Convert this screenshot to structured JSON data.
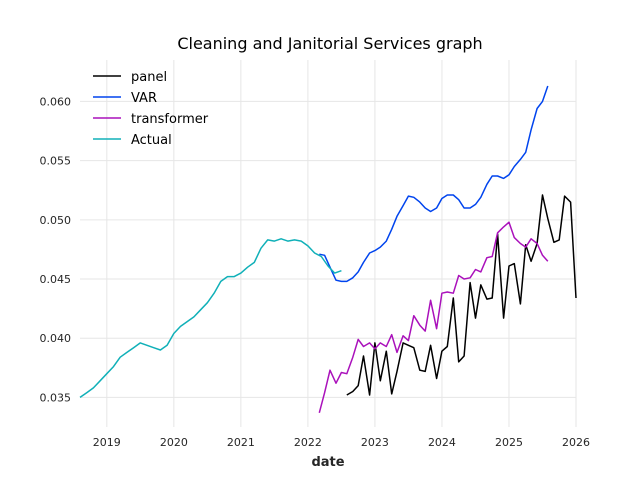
{
  "chart_data": {
    "type": "line",
    "title": "Cleaning and Janitorial Services graph",
    "xlabel": "date",
    "ylabel": "",
    "xlim": [
      2018.6,
      2026.0
    ],
    "ylim": [
      0.0325,
      0.0635
    ],
    "x_ticks": [
      2019,
      2020,
      2021,
      2022,
      2023,
      2024,
      2025,
      2026
    ],
    "x_tick_labels": [
      "2019",
      "2020",
      "2021",
      "2022",
      "2023",
      "2024",
      "2025",
      "2026"
    ],
    "y_ticks": [
      0.035,
      0.04,
      0.045,
      0.05,
      0.055,
      0.06
    ],
    "y_tick_labels": [
      "0.035",
      "0.040",
      "0.045",
      "0.050",
      "0.055",
      "0.060"
    ],
    "grid": true,
    "legend_position": "top-left",
    "series": [
      {
        "name": "panel",
        "color": "#000000",
        "x": [
          2022.58,
          2022.67,
          2022.75,
          2022.83,
          2022.92,
          2023.0,
          2023.08,
          2023.17,
          2023.25,
          2023.33,
          2023.42,
          2023.5,
          2023.58,
          2023.67,
          2023.75,
          2023.83,
          2023.92,
          2024.0,
          2024.08,
          2024.17,
          2024.25,
          2024.33,
          2024.42,
          2024.5,
          2024.58,
          2024.67,
          2024.75,
          2024.83,
          2024.92,
          2025.0,
          2025.08,
          2025.17,
          2025.25,
          2025.33,
          2025.42,
          2025.5,
          2025.58,
          2025.67,
          2025.75,
          2025.83,
          2025.92,
          2026.0
        ],
        "values": [
          0.0352,
          0.0355,
          0.036,
          0.0385,
          0.0352,
          0.0396,
          0.0364,
          0.0389,
          0.0353,
          0.0372,
          0.0396,
          0.0394,
          0.0392,
          0.0373,
          0.0372,
          0.0394,
          0.0366,
          0.0389,
          0.0393,
          0.0434,
          0.038,
          0.0385,
          0.0447,
          0.0417,
          0.0445,
          0.0433,
          0.0434,
          0.0488,
          0.0417,
          0.0461,
          0.0463,
          0.0429,
          0.0479,
          0.0465,
          0.048,
          0.0521,
          0.0501,
          0.0481,
          0.0483,
          0.052,
          0.0515,
          0.0434
        ]
      },
      {
        "name": "VAR",
        "color": "#0044ee",
        "x": [
          2022.17,
          2022.25,
          2022.33,
          2022.42,
          2022.5,
          2022.58,
          2022.67,
          2022.75,
          2022.83,
          2022.92,
          2023.0,
          2023.08,
          2023.17,
          2023.25,
          2023.33,
          2023.42,
          2023.5,
          2023.58,
          2023.67,
          2023.75,
          2023.83,
          2023.92,
          2024.0,
          2024.08,
          2024.17,
          2024.25,
          2024.33,
          2024.42,
          2024.5,
          2024.58,
          2024.67,
          2024.75,
          2024.83,
          2024.92,
          2025.0,
          2025.08,
          2025.17,
          2025.25,
          2025.33,
          2025.42,
          2025.5,
          2025.58
        ],
        "values": [
          0.0471,
          0.047,
          0.046,
          0.0449,
          0.0448,
          0.0448,
          0.0451,
          0.0456,
          0.0464,
          0.0472,
          0.0474,
          0.0477,
          0.0482,
          0.0492,
          0.0503,
          0.0512,
          0.052,
          0.0519,
          0.0515,
          0.051,
          0.0507,
          0.051,
          0.0518,
          0.0521,
          0.0521,
          0.0517,
          0.051,
          0.051,
          0.0513,
          0.0519,
          0.053,
          0.0537,
          0.0537,
          0.0535,
          0.0538,
          0.0545,
          0.0551,
          0.0557,
          0.0576,
          0.0594,
          0.06,
          0.0613
        ]
      },
      {
        "name": "transformer",
        "color": "#aa11bb",
        "x": [
          2022.17,
          2022.25,
          2022.33,
          2022.42,
          2022.5,
          2022.58,
          2022.67,
          2022.75,
          2022.83,
          2022.92,
          2023.0,
          2023.08,
          2023.17,
          2023.25,
          2023.33,
          2023.42,
          2023.5,
          2023.58,
          2023.67,
          2023.75,
          2023.83,
          2023.92,
          2024.0,
          2024.08,
          2024.17,
          2024.25,
          2024.33,
          2024.42,
          2024.5,
          2024.58,
          2024.67,
          2024.75,
          2024.83,
          2024.92,
          2025.0,
          2025.08,
          2025.17,
          2025.25,
          2025.33,
          2025.42,
          2025.5,
          2025.58
        ],
        "values": [
          0.0337,
          0.0354,
          0.0373,
          0.0362,
          0.0371,
          0.037,
          0.0384,
          0.0399,
          0.0393,
          0.0396,
          0.0391,
          0.0396,
          0.0393,
          0.0403,
          0.0388,
          0.0402,
          0.0398,
          0.0419,
          0.0411,
          0.0406,
          0.0432,
          0.0408,
          0.0438,
          0.0439,
          0.0438,
          0.0453,
          0.045,
          0.0451,
          0.0458,
          0.0456,
          0.0468,
          0.0469,
          0.0489,
          0.0494,
          0.0498,
          0.0485,
          0.048,
          0.0477,
          0.0484,
          0.048,
          0.047,
          0.0465
        ]
      },
      {
        "name": "Actual",
        "color": "#10b0b8",
        "x": [
          2018.6,
          2018.7,
          2018.8,
          2018.9,
          2019.0,
          2019.1,
          2019.2,
          2019.3,
          2019.4,
          2019.5,
          2019.6,
          2019.7,
          2019.8,
          2019.9,
          2020.0,
          2020.1,
          2020.2,
          2020.3,
          2020.4,
          2020.5,
          2020.6,
          2020.7,
          2020.8,
          2020.9,
          2021.0,
          2021.1,
          2021.2,
          2021.3,
          2021.4,
          2021.5,
          2021.6,
          2021.7,
          2021.8,
          2021.9,
          2022.0,
          2022.1,
          2022.2,
          2022.3,
          2022.4,
          2022.5
        ],
        "values": [
          0.035,
          0.0354,
          0.0358,
          0.0364,
          0.037,
          0.0376,
          0.0384,
          0.0388,
          0.0392,
          0.0396,
          0.0394,
          0.0392,
          0.039,
          0.0394,
          0.0404,
          0.041,
          0.0414,
          0.0418,
          0.0424,
          0.043,
          0.0438,
          0.0448,
          0.0452,
          0.0452,
          0.0455,
          0.046,
          0.0464,
          0.0476,
          0.0483,
          0.0482,
          0.0484,
          0.0482,
          0.0483,
          0.0482,
          0.0478,
          0.0472,
          0.0469,
          0.0461,
          0.0455,
          0.0457
        ]
      }
    ]
  }
}
